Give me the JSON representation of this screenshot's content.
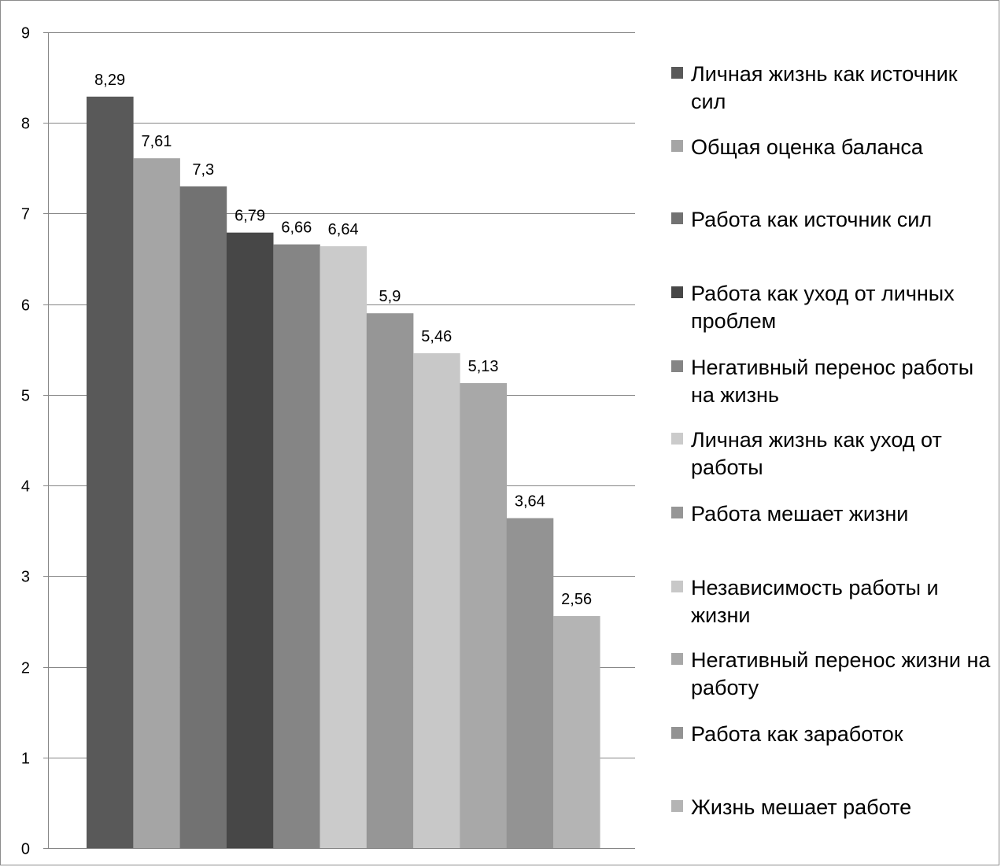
{
  "chart_data": {
    "type": "bar",
    "title": "",
    "xlabel": "",
    "ylabel": "",
    "ylim": [
      0,
      9
    ],
    "yticks": [
      0,
      1,
      2,
      3,
      4,
      5,
      6,
      7,
      8,
      9
    ],
    "grid": true,
    "legend_position": "right",
    "series": [
      {
        "name": "Личная жизнь как источник сил",
        "value": 8.29,
        "label": "8,29",
        "color": "#595959"
      },
      {
        "name": "Общая оценка баланса",
        "value": 7.61,
        "label": "7,61",
        "color": "#a5a5a5"
      },
      {
        "name": "Работа как источник сил",
        "value": 7.3,
        "label": "7,3",
        "color": "#727272"
      },
      {
        "name": "Работа как уход от личных проблем",
        "value": 6.79,
        "label": "6,79",
        "color": "#474747"
      },
      {
        "name": "Негативный перенос работы на жизнь",
        "value": 6.66,
        "label": "6,66",
        "color": "#858585"
      },
      {
        "name": "Личная жизнь как уход от работы",
        "value": 6.64,
        "label": "6,64",
        "color": "#cbcbcb"
      },
      {
        "name": "Работа мешает жизни",
        "value": 5.9,
        "label": "5,9",
        "color": "#969696"
      },
      {
        "name": "Независимость работы и жизни",
        "value": 5.46,
        "label": "5,46",
        "color": "#c8c8c8"
      },
      {
        "name": "Негативный перенос жизни на работу",
        "value": 5.13,
        "label": "5,13",
        "color": "#a8a8a8"
      },
      {
        "name": "Работа как заработок",
        "value": 3.64,
        "label": "3,64",
        "color": "#939393"
      },
      {
        "name": "Жизнь мешает работе",
        "value": 2.56,
        "label": "2,56",
        "color": "#b4b4b4"
      }
    ]
  }
}
